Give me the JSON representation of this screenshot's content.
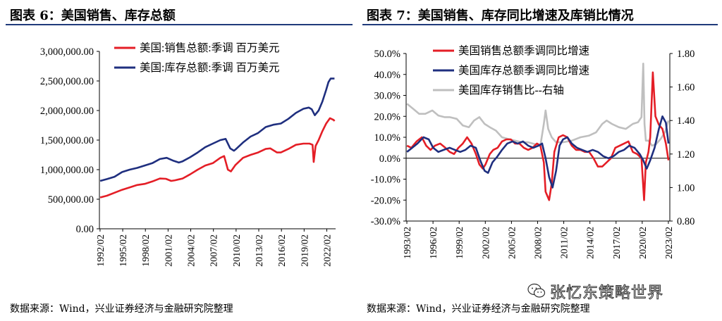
{
  "left": {
    "title": "图表 6：美国销售、库存总额",
    "source": "数据来源：Wind，兴业证券经济与金融研究院整理"
  },
  "right": {
    "title": "图表 7：美国销售、库存同比增速及库销比情况",
    "source": "数据来源：Wind，兴业证券经济与金融研究院整理"
  },
  "watermark": "张忆东策略世界",
  "colors": {
    "red": "#e41e26",
    "navy": "#1f2f7f",
    "gray": "#bfbfbf",
    "rule": "#1f3a7a"
  },
  "chart_data": [
    {
      "type": "line",
      "title": "",
      "xlabel": "",
      "ylabel": "",
      "xlim": [
        1992.0,
        2023.25
      ],
      "ylim": [
        0,
        3000000
      ],
      "yticks": [
        "0.00",
        "500,000.00",
        "1,000,000.00",
        "1,500,000.00",
        "2,000,000.00",
        "2,500,000.00",
        "3,000,000.00"
      ],
      "xticks": [
        "1992/02",
        "1995/02",
        "1998/02",
        "2001/02",
        "2004/02",
        "2007/02",
        "2010/02",
        "2013/02",
        "2016/02",
        "2019/02",
        "2022/02"
      ],
      "legend_position": "top-right",
      "grid": false,
      "series": [
        {
          "name": "美国:销售总额:季调 百万美元",
          "color": "red",
          "x": [
            1992.1,
            1993.0,
            1994.0,
            1995.0,
            1996.0,
            1997.0,
            1998.0,
            1999.0,
            2000.0,
            2000.8,
            2001.5,
            2002.0,
            2003.0,
            2004.0,
            2005.0,
            2006.0,
            2007.0,
            2008.0,
            2008.5,
            2009.0,
            2009.4,
            2010.0,
            2011.0,
            2012.0,
            2013.0,
            2014.0,
            2014.6,
            2015.5,
            2016.0,
            2017.0,
            2018.0,
            2019.0,
            2019.8,
            2020.2,
            2020.35,
            2020.6,
            2021.0,
            2021.5,
            2022.0,
            2022.5,
            2023.0,
            2023.1
          ],
          "values": [
            530000,
            560000,
            610000,
            660000,
            700000,
            740000,
            760000,
            800000,
            850000,
            845000,
            810000,
            820000,
            850000,
            920000,
            1000000,
            1070000,
            1110000,
            1200000,
            1230000,
            1000000,
            970000,
            1080000,
            1200000,
            1250000,
            1290000,
            1350000,
            1360000,
            1290000,
            1290000,
            1350000,
            1420000,
            1440000,
            1440000,
            1420000,
            1130000,
            1400000,
            1500000,
            1650000,
            1780000,
            1870000,
            1840000,
            1820000
          ]
        },
        {
          "name": "美国:库存总额:季调 百万美元",
          "color": "navy",
          "x": [
            1992.1,
            1993.0,
            1994.0,
            1995.0,
            1996.0,
            1997.0,
            1998.0,
            1999.0,
            2000.0,
            2000.9,
            2001.8,
            2002.5,
            2003.0,
            2004.0,
            2005.0,
            2006.0,
            2007.0,
            2008.0,
            2008.7,
            2009.3,
            2009.8,
            2010.0,
            2011.0,
            2012.0,
            2013.0,
            2014.0,
            2015.0,
            2016.0,
            2017.0,
            2018.0,
            2019.0,
            2019.7,
            2020.1,
            2020.5,
            2021.0,
            2021.5,
            2022.0,
            2022.3,
            2022.6,
            2023.0,
            2023.1
          ],
          "values": [
            810000,
            840000,
            880000,
            960000,
            1000000,
            1030000,
            1070000,
            1110000,
            1180000,
            1200000,
            1150000,
            1120000,
            1140000,
            1210000,
            1290000,
            1380000,
            1440000,
            1500000,
            1520000,
            1360000,
            1320000,
            1340000,
            1460000,
            1560000,
            1620000,
            1720000,
            1760000,
            1780000,
            1860000,
            1960000,
            2030000,
            2050000,
            2020000,
            1920000,
            2000000,
            2150000,
            2350000,
            2480000,
            2540000,
            2540000,
            2540000
          ]
        }
      ]
    },
    {
      "type": "line",
      "title": "",
      "xlabel": "",
      "ylabel": "",
      "xlim": [
        1993.0,
        2023.25
      ],
      "ylim": [
        -0.3,
        0.5
      ],
      "y2lim": [
        0.8,
        1.8
      ],
      "yticks": [
        "-30.0%",
        "-20.0%",
        "-10.0%",
        "0.0%",
        "10.0%",
        "20.0%",
        "30.0%",
        "40.0%",
        "50.0%"
      ],
      "y2ticks": [
        "0.80",
        "1.00",
        "1.20",
        "1.40",
        "1.60",
        "1.80"
      ],
      "xticks": [
        "1993/02",
        "1996/02",
        "1999/02",
        "2002/02",
        "2005/02",
        "2008/02",
        "2011/02",
        "2014/02",
        "2017/02",
        "2020/02",
        "2023/02"
      ],
      "legend_position": "top-left",
      "grid": false,
      "series": [
        {
          "name": "美国销售总额季调同比增速",
          "color": "red",
          "axis": "left",
          "x": [
            1993.1,
            1993.6,
            1994.2,
            1994.8,
            1995.3,
            1995.8,
            1996.3,
            1996.9,
            1997.5,
            1998.0,
            1998.5,
            1999.0,
            1999.5,
            2000.0,
            2000.5,
            2001.0,
            2001.4,
            2001.8,
            2002.1,
            2002.6,
            2003.0,
            2003.5,
            2004.0,
            2004.5,
            2005.0,
            2005.5,
            2006.0,
            2006.5,
            2007.0,
            2007.5,
            2008.0,
            2008.4,
            2008.8,
            2009.0,
            2009.4,
            2009.7,
            2010.0,
            2010.5,
            2011.0,
            2011.5,
            2012.0,
            2012.5,
            2013.0,
            2013.5,
            2014.0,
            2014.5,
            2015.0,
            2015.5,
            2016.0,
            2016.5,
            2017.0,
            2017.5,
            2018.0,
            2018.5,
            2019.0,
            2019.5,
            2020.0,
            2020.3,
            2020.5,
            2020.8,
            2021.0,
            2021.3,
            2021.6,
            2022.0,
            2022.4,
            2022.8,
            2023.1
          ],
          "values": [
            0.06,
            0.05,
            0.08,
            0.1,
            0.06,
            0.04,
            0.06,
            0.07,
            0.05,
            0.03,
            0.02,
            0.05,
            0.07,
            0.1,
            0.07,
            0.02,
            -0.03,
            -0.05,
            -0.03,
            0.02,
            0.04,
            0.05,
            0.08,
            0.09,
            0.09,
            0.07,
            0.07,
            0.05,
            0.04,
            0.05,
            0.07,
            0.06,
            -0.02,
            -0.16,
            -0.2,
            -0.12,
            0.03,
            0.1,
            0.11,
            0.1,
            0.06,
            0.04,
            0.04,
            0.03,
            0.03,
            0.0,
            -0.04,
            -0.04,
            -0.02,
            0.0,
            0.05,
            0.06,
            0.07,
            0.08,
            0.03,
            0.02,
            0.0,
            -0.2,
            -0.02,
            0.03,
            0.1,
            0.41,
            0.2,
            0.16,
            0.14,
            0.07,
            -0.01
          ]
        },
        {
          "name": "美国库存总额季调同比增速",
          "color": "navy",
          "axis": "left",
          "x": [
            1993.1,
            1993.7,
            1994.3,
            1995.0,
            1995.6,
            1996.1,
            1996.7,
            1997.3,
            1998.0,
            1998.6,
            1999.2,
            1999.8,
            2000.4,
            2001.0,
            2001.5,
            2002.0,
            2002.4,
            2002.9,
            2003.5,
            2004.0,
            2004.6,
            2005.2,
            2005.8,
            2006.4,
            2007.0,
            2007.6,
            2008.2,
            2008.6,
            2009.0,
            2009.4,
            2009.8,
            2010.2,
            2010.6,
            2011.0,
            2011.5,
            2012.0,
            2012.6,
            2013.2,
            2013.8,
            2014.4,
            2015.0,
            2015.6,
            2016.2,
            2016.8,
            2017.4,
            2018.0,
            2018.6,
            2019.2,
            2019.8,
            2020.2,
            2020.6,
            2021.0,
            2021.5,
            2022.0,
            2022.4,
            2022.8,
            2023.1
          ],
          "values": [
            0.03,
            0.05,
            0.07,
            0.1,
            0.09,
            0.05,
            0.03,
            0.04,
            0.05,
            0.04,
            0.03,
            0.04,
            0.06,
            0.05,
            -0.01,
            -0.06,
            -0.07,
            -0.02,
            0.01,
            0.04,
            0.07,
            0.08,
            0.07,
            0.08,
            0.06,
            0.05,
            0.06,
            0.07,
            0.0,
            -0.09,
            -0.14,
            -0.06,
            0.06,
            0.09,
            0.1,
            0.07,
            0.05,
            0.04,
            0.03,
            0.04,
            0.03,
            0.01,
            0.0,
            0.01,
            0.03,
            0.04,
            0.06,
            0.05,
            0.02,
            -0.01,
            -0.05,
            -0.01,
            0.05,
            0.14,
            0.2,
            0.17,
            0.07
          ]
        },
        {
          "name": "美国库存销售比--右轴",
          "color": "gray",
          "axis": "right",
          "x": [
            1993.1,
            1993.8,
            1994.5,
            1995.2,
            1996.0,
            1996.7,
            1997.4,
            1998.0,
            1998.8,
            1999.5,
            2000.2,
            2000.8,
            2001.4,
            2002.0,
            2002.6,
            2003.3,
            2004.0,
            2004.7,
            2005.5,
            2006.3,
            2007.0,
            2007.7,
            2008.4,
            2008.8,
            2009.0,
            2009.3,
            2009.7,
            2010.2,
            2011.0,
            2012.0,
            2013.0,
            2014.0,
            2014.8,
            2015.5,
            2016.0,
            2016.6,
            2017.4,
            2018.2,
            2019.0,
            2019.6,
            2020.0,
            2020.2,
            2020.35,
            2020.5,
            2020.8,
            2021.2,
            2021.7,
            2022.2,
            2022.7,
            2023.1
          ],
          "values": [
            1.5,
            1.47,
            1.44,
            1.44,
            1.46,
            1.43,
            1.42,
            1.42,
            1.41,
            1.37,
            1.36,
            1.4,
            1.42,
            1.38,
            1.36,
            1.34,
            1.3,
            1.29,
            1.28,
            1.27,
            1.27,
            1.26,
            1.25,
            1.38,
            1.46,
            1.35,
            1.3,
            1.27,
            1.27,
            1.28,
            1.3,
            1.31,
            1.33,
            1.38,
            1.4,
            1.38,
            1.36,
            1.35,
            1.38,
            1.39,
            1.42,
            1.74,
            1.38,
            1.28,
            1.28,
            1.25,
            1.26,
            1.29,
            1.33,
            1.4
          ]
        }
      ]
    }
  ]
}
